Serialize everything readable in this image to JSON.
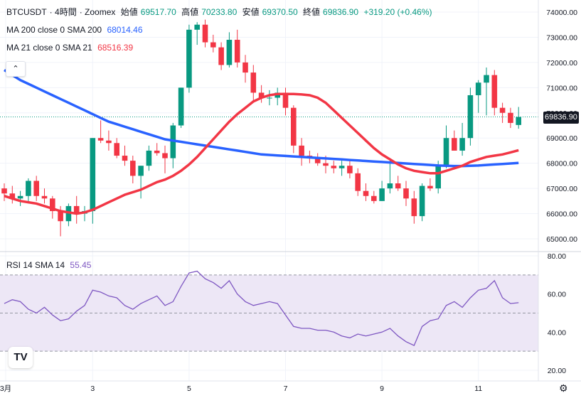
{
  "header": {
    "symbol": "BTCUSDT",
    "interval": "4時間",
    "exchange": "Zoomex",
    "open_label": "始値",
    "open": "69517.70",
    "high_label": "高値",
    "high": "70233.80",
    "low_label": "安値",
    "low": "69370.50",
    "close_label": "終値",
    "close": "69836.90",
    "change": "+319.20 (+0.46%)"
  },
  "indicators": {
    "ma200_label": "MA 200 close 0 SMA 200",
    "ma200_value": "68014.46",
    "ma21_label": "MA 21 close 0 SMA 21",
    "ma21_value": "68516.39",
    "rsi_label": "RSI 14 SMA 14",
    "rsi_value": "55.45"
  },
  "buttons": {
    "collapse": "⌃",
    "logo": "TV",
    "settings": "⚙"
  },
  "last_price_tag": "69836.90",
  "colors": {
    "up": "#089981",
    "down": "#f23645",
    "ma200": "#2962ff",
    "ma21": "#f23645",
    "rsi": "#7e57c2",
    "rsi_band": "#ede7f6"
  },
  "chart_data": {
    "type": "candlestick",
    "title": "BTCUSDT · 4時間 · Zoomex",
    "price_ticks": [
      "74000.00",
      "73000.00",
      "72000.00",
      "71000.00",
      "70000.00",
      "69000.00",
      "68000.00",
      "67000.00",
      "66000.00",
      "65000.00"
    ],
    "price_range": [
      64800,
      74200
    ],
    "rsi_ticks": [
      "80.00",
      "60.00",
      "40.00",
      "20.00"
    ],
    "rsi_range": [
      18,
      82
    ],
    "rsi_levels": [
      70,
      50,
      30
    ],
    "x_ticks": [
      {
        "label": "3月",
        "index": 0
      },
      {
        "label": "3",
        "index": 11
      },
      {
        "label": "5",
        "index": 23
      },
      {
        "label": "7",
        "index": 35
      },
      {
        "label": "9",
        "index": 47
      },
      {
        "label": "11",
        "index": 59
      }
    ],
    "candles": [
      [
        67000,
        67200,
        66500,
        66800
      ],
      [
        66800,
        67100,
        66400,
        66600
      ],
      [
        66600,
        66900,
        66300,
        66700
      ],
      [
        66700,
        67400,
        66400,
        67300
      ],
      [
        67300,
        67500,
        66500,
        66700
      ],
      [
        66700,
        67000,
        66400,
        66600
      ],
      [
        66600,
        66700,
        65800,
        66100
      ],
      [
        66100,
        66300,
        65100,
        65700
      ],
      [
        65700,
        66400,
        65500,
        66300
      ],
      [
        66300,
        66700,
        65600,
        66000
      ],
      [
        66000,
        66300,
        65700,
        66100
      ],
      [
        66100,
        69000,
        65600,
        69000
      ],
      [
        69000,
        69700,
        68800,
        68900
      ],
      [
        68900,
        69300,
        68500,
        68800
      ],
      [
        68800,
        69000,
        68200,
        68300
      ],
      [
        68300,
        68700,
        67900,
        68100
      ],
      [
        68100,
        68300,
        67200,
        67500
      ],
      [
        67500,
        67900,
        66600,
        67900
      ],
      [
        67900,
        68700,
        67700,
        68500
      ],
      [
        68500,
        68800,
        68300,
        68400
      ],
      [
        68400,
        68700,
        67600,
        68200
      ],
      [
        68200,
        69600,
        67800,
        69500
      ],
      [
        69500,
        71000,
        69400,
        71000
      ],
      [
        71000,
        73500,
        70800,
        73300
      ],
      [
        73300,
        73600,
        72700,
        73500
      ],
      [
        73500,
        73700,
        72600,
        72800
      ],
      [
        72800,
        73100,
        72400,
        72600
      ],
      [
        72600,
        72800,
        71700,
        71900
      ],
      [
        71900,
        73200,
        71800,
        72900
      ],
      [
        72900,
        73300,
        71800,
        72000
      ],
      [
        72000,
        72300,
        71200,
        71600
      ],
      [
        71600,
        71900,
        70500,
        70800
      ],
      [
        70800,
        71100,
        70400,
        70600
      ],
      [
        70600,
        70900,
        70300,
        70600
      ],
      [
        70600,
        71000,
        70300,
        70800
      ],
      [
        70800,
        71000,
        69900,
        70200
      ],
      [
        70200,
        70300,
        68400,
        68700
      ],
      [
        68700,
        69000,
        67900,
        68300
      ],
      [
        68300,
        68500,
        68000,
        68200
      ],
      [
        68200,
        68400,
        67900,
        68000
      ],
      [
        68000,
        68300,
        67600,
        67900
      ],
      [
        67900,
        68100,
        67600,
        67800
      ],
      [
        67800,
        68100,
        67500,
        67900
      ],
      [
        67900,
        68100,
        67400,
        67600
      ],
      [
        67600,
        67800,
        66700,
        66900
      ],
      [
        66900,
        67200,
        66500,
        66700
      ],
      [
        66700,
        66900,
        66400,
        66500
      ],
      [
        66500,
        67300,
        66500,
        67000
      ],
      [
        67000,
        68200,
        66800,
        67200
      ],
      [
        67200,
        67500,
        66900,
        67000
      ],
      [
        67000,
        67300,
        66300,
        66600
      ],
      [
        66600,
        66900,
        65600,
        65900
      ],
      [
        65900,
        67200,
        65700,
        67100
      ],
      [
        67100,
        67400,
        66900,
        67000
      ],
      [
        67000,
        68100,
        66800,
        67900
      ],
      [
        67900,
        69500,
        67800,
        69000
      ],
      [
        69000,
        69300,
        68500,
        68500
      ],
      [
        68500,
        69600,
        68300,
        69000
      ],
      [
        69000,
        71000,
        68700,
        70700
      ],
      [
        70700,
        71300,
        70000,
        71200
      ],
      [
        71200,
        71800,
        69900,
        71500
      ],
      [
        71500,
        71700,
        69900,
        70200
      ],
      [
        70200,
        70400,
        69600,
        70000
      ],
      [
        70000,
        70200,
        69400,
        69600
      ],
      [
        69518,
        70234,
        69371,
        69837
      ]
    ],
    "ma200": [
      71700,
      71500,
      71300,
      71150,
      71000,
      70850,
      70700,
      70550,
      70400,
      70250,
      70100,
      69950,
      69800,
      69650,
      69550,
      69450,
      69350,
      69250,
      69150,
      69050,
      68950,
      68900,
      68850,
      68800,
      68750,
      68700,
      68650,
      68600,
      68550,
      68500,
      68450,
      68400,
      68350,
      68330,
      68310,
      68290,
      68270,
      68250,
      68230,
      68210,
      68190,
      68170,
      68150,
      68130,
      68110,
      68090,
      68070,
      68050,
      68030,
      68010,
      67990,
      67970,
      67950,
      67930,
      67910,
      67900,
      67890,
      67890,
      67900,
      67910,
      67930,
      67950,
      67970,
      67990,
      68014
    ],
    "ma21": [
      66700,
      66600,
      66500,
      66450,
      66400,
      66300,
      66200,
      66100,
      66050,
      66000,
      66050,
      66150,
      66300,
      66450,
      66600,
      66750,
      66850,
      66950,
      67100,
      67250,
      67350,
      67500,
      67700,
      67950,
      68250,
      68600,
      68950,
      69300,
      69650,
      69950,
      70200,
      70450,
      70600,
      70700,
      70750,
      70750,
      70750,
      70730,
      70700,
      70600,
      70400,
      70100,
      69800,
      69500,
      69200,
      68900,
      68600,
      68350,
      68150,
      67950,
      67800,
      67700,
      67650,
      67600,
      67600,
      67700,
      67800,
      67900,
      68050,
      68150,
      68250,
      68300,
      68350,
      68430,
      68516
    ],
    "rsi": [
      55,
      57,
      56,
      52,
      50,
      53,
      49,
      46,
      47,
      51,
      54,
      62,
      61,
      59,
      58,
      54,
      52,
      55,
      57,
      59,
      54,
      56,
      64,
      71,
      72,
      68,
      66,
      63,
      67,
      60,
      56,
      54,
      55,
      56,
      55,
      49,
      43,
      42,
      42,
      41,
      41,
      40,
      38,
      37,
      39,
      38,
      39,
      40,
      42,
      38,
      35,
      33,
      43,
      46,
      47,
      54,
      56,
      53,
      58,
      62,
      63,
      67,
      58,
      55,
      55.45
    ]
  }
}
